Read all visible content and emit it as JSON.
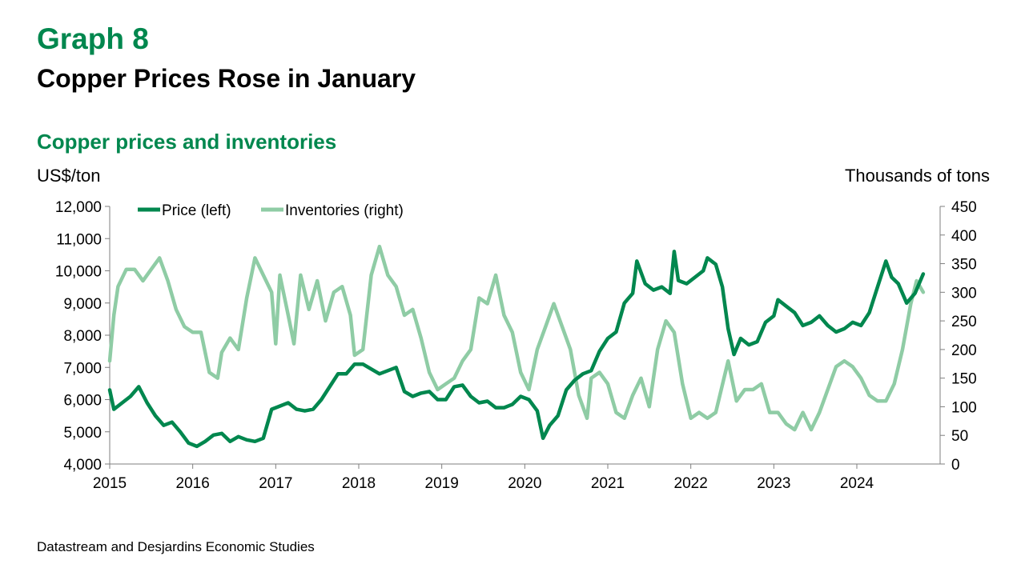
{
  "header": {
    "graph_number": "Graph 8",
    "title": "Copper Prices Rose in January",
    "subtitle": "Copper prices and inventories"
  },
  "footer": {
    "source": "Datastream and Desjardins Economic Studies"
  },
  "colors": {
    "accent": "#00874E",
    "price_line": "#00874E",
    "inventories_line": "#8FCCA5"
  },
  "chart_data": {
    "type": "line",
    "y_left_label": "US$/ton",
    "y_right_label": "Thousands of tons",
    "y_left_range": [
      4000,
      12000
    ],
    "y_left_ticks": [
      "4,000",
      "5,000",
      "6,000",
      "7,000",
      "8,000",
      "9,000",
      "10,000",
      "11,000",
      "12,000"
    ],
    "y_right_range": [
      0,
      450
    ],
    "y_right_ticks": [
      "0",
      "50",
      "100",
      "150",
      "200",
      "250",
      "300",
      "350",
      "400",
      "450"
    ],
    "x_range": [
      2015,
      2024.8
    ],
    "x_ticks": [
      "2015",
      "2016",
      "2017",
      "2018",
      "2019",
      "2020",
      "2021",
      "2022",
      "2023",
      "2024"
    ],
    "grid": false,
    "legend_position": "top-left",
    "series": [
      {
        "name": "Price (left)",
        "axis": "left",
        "points": [
          [
            2015.0,
            6300
          ],
          [
            2015.05,
            5700
          ],
          [
            2015.15,
            5900
          ],
          [
            2015.25,
            6100
          ],
          [
            2015.35,
            6400
          ],
          [
            2015.45,
            5900
          ],
          [
            2015.55,
            5500
          ],
          [
            2015.65,
            5200
          ],
          [
            2015.75,
            5300
          ],
          [
            2015.85,
            5000
          ],
          [
            2015.95,
            4650
          ],
          [
            2016.05,
            4550
          ],
          [
            2016.15,
            4700
          ],
          [
            2016.25,
            4900
          ],
          [
            2016.35,
            4950
          ],
          [
            2016.45,
            4700
          ],
          [
            2016.55,
            4850
          ],
          [
            2016.65,
            4750
          ],
          [
            2016.75,
            4700
          ],
          [
            2016.85,
            4800
          ],
          [
            2016.95,
            5700
          ],
          [
            2017.05,
            5800
          ],
          [
            2017.15,
            5900
          ],
          [
            2017.25,
            5700
          ],
          [
            2017.35,
            5650
          ],
          [
            2017.45,
            5700
          ],
          [
            2017.55,
            6000
          ],
          [
            2017.65,
            6400
          ],
          [
            2017.75,
            6800
          ],
          [
            2017.85,
            6800
          ],
          [
            2017.95,
            7100
          ],
          [
            2018.05,
            7100
          ],
          [
            2018.15,
            6950
          ],
          [
            2018.25,
            6800
          ],
          [
            2018.35,
            6900
          ],
          [
            2018.45,
            7000
          ],
          [
            2018.55,
            6250
          ],
          [
            2018.65,
            6100
          ],
          [
            2018.75,
            6200
          ],
          [
            2018.85,
            6250
          ],
          [
            2018.95,
            6000
          ],
          [
            2019.05,
            6000
          ],
          [
            2019.15,
            6400
          ],
          [
            2019.25,
            6450
          ],
          [
            2019.35,
            6100
          ],
          [
            2019.45,
            5900
          ],
          [
            2019.55,
            5950
          ],
          [
            2019.65,
            5750
          ],
          [
            2019.75,
            5750
          ],
          [
            2019.85,
            5850
          ],
          [
            2019.95,
            6100
          ],
          [
            2020.05,
            6000
          ],
          [
            2020.15,
            5650
          ],
          [
            2020.22,
            4800
          ],
          [
            2020.3,
            5200
          ],
          [
            2020.4,
            5500
          ],
          [
            2020.5,
            6300
          ],
          [
            2020.6,
            6600
          ],
          [
            2020.7,
            6800
          ],
          [
            2020.8,
            6900
          ],
          [
            2020.9,
            7500
          ],
          [
            2021.0,
            7900
          ],
          [
            2021.1,
            8100
          ],
          [
            2021.2,
            9000
          ],
          [
            2021.3,
            9300
          ],
          [
            2021.35,
            10300
          ],
          [
            2021.45,
            9600
          ],
          [
            2021.55,
            9400
          ],
          [
            2021.65,
            9500
          ],
          [
            2021.75,
            9300
          ],
          [
            2021.8,
            10600
          ],
          [
            2021.85,
            9700
          ],
          [
            2021.95,
            9600
          ],
          [
            2022.05,
            9800
          ],
          [
            2022.15,
            10000
          ],
          [
            2022.2,
            10400
          ],
          [
            2022.3,
            10200
          ],
          [
            2022.38,
            9500
          ],
          [
            2022.45,
            8200
          ],
          [
            2022.52,
            7400
          ],
          [
            2022.6,
            7900
          ],
          [
            2022.7,
            7700
          ],
          [
            2022.8,
            7800
          ],
          [
            2022.9,
            8400
          ],
          [
            2023.0,
            8600
          ],
          [
            2023.05,
            9100
          ],
          [
            2023.15,
            8900
          ],
          [
            2023.25,
            8700
          ],
          [
            2023.35,
            8300
          ],
          [
            2023.45,
            8400
          ],
          [
            2023.55,
            8600
          ],
          [
            2023.65,
            8300
          ],
          [
            2023.75,
            8100
          ],
          [
            2023.85,
            8200
          ],
          [
            2023.95,
            8400
          ],
          [
            2024.05,
            8300
          ],
          [
            2024.15,
            8700
          ],
          [
            2024.25,
            9500
          ],
          [
            2024.35,
            10300
          ],
          [
            2024.42,
            9800
          ],
          [
            2024.5,
            9600
          ],
          [
            2024.6,
            9000
          ],
          [
            2024.7,
            9300
          ],
          [
            2024.8,
            9900
          ]
        ]
      },
      {
        "name": "Inventories (right)",
        "axis": "right",
        "points": [
          [
            2015.0,
            180
          ],
          [
            2015.05,
            260
          ],
          [
            2015.1,
            310
          ],
          [
            2015.2,
            340
          ],
          [
            2015.3,
            340
          ],
          [
            2015.4,
            320
          ],
          [
            2015.5,
            340
          ],
          [
            2015.6,
            360
          ],
          [
            2015.7,
            320
          ],
          [
            2015.8,
            270
          ],
          [
            2015.9,
            240
          ],
          [
            2016.0,
            230
          ],
          [
            2016.1,
            230
          ],
          [
            2016.2,
            160
          ],
          [
            2016.3,
            150
          ],
          [
            2016.35,
            195
          ],
          [
            2016.45,
            220
          ],
          [
            2016.55,
            200
          ],
          [
            2016.65,
            290
          ],
          [
            2016.75,
            360
          ],
          [
            2016.85,
            330
          ],
          [
            2016.95,
            300
          ],
          [
            2017.0,
            210
          ],
          [
            2017.05,
            330
          ],
          [
            2017.15,
            260
          ],
          [
            2017.22,
            210
          ],
          [
            2017.3,
            330
          ],
          [
            2017.4,
            270
          ],
          [
            2017.5,
            320
          ],
          [
            2017.6,
            250
          ],
          [
            2017.7,
            300
          ],
          [
            2017.8,
            310
          ],
          [
            2017.9,
            260
          ],
          [
            2017.95,
            190
          ],
          [
            2018.05,
            200
          ],
          [
            2018.15,
            330
          ],
          [
            2018.25,
            380
          ],
          [
            2018.35,
            330
          ],
          [
            2018.45,
            310
          ],
          [
            2018.55,
            260
          ],
          [
            2018.65,
            270
          ],
          [
            2018.75,
            220
          ],
          [
            2018.85,
            160
          ],
          [
            2018.95,
            130
          ],
          [
            2019.05,
            140
          ],
          [
            2019.15,
            150
          ],
          [
            2019.25,
            180
          ],
          [
            2019.35,
            200
          ],
          [
            2019.45,
            290
          ],
          [
            2019.55,
            280
          ],
          [
            2019.65,
            330
          ],
          [
            2019.75,
            260
          ],
          [
            2019.85,
            230
          ],
          [
            2019.95,
            160
          ],
          [
            2020.05,
            130
          ],
          [
            2020.15,
            200
          ],
          [
            2020.25,
            240
          ],
          [
            2020.35,
            280
          ],
          [
            2020.45,
            240
          ],
          [
            2020.55,
            200
          ],
          [
            2020.65,
            120
          ],
          [
            2020.75,
            80
          ],
          [
            2020.8,
            150
          ],
          [
            2020.9,
            160
          ],
          [
            2021.0,
            140
          ],
          [
            2021.1,
            90
          ],
          [
            2021.2,
            80
          ],
          [
            2021.3,
            120
          ],
          [
            2021.4,
            150
          ],
          [
            2021.5,
            100
          ],
          [
            2021.6,
            200
          ],
          [
            2021.7,
            250
          ],
          [
            2021.8,
            230
          ],
          [
            2021.9,
            140
          ],
          [
            2022.0,
            80
          ],
          [
            2022.1,
            90
          ],
          [
            2022.2,
            80
          ],
          [
            2022.3,
            90
          ],
          [
            2022.4,
            150
          ],
          [
            2022.45,
            180
          ],
          [
            2022.55,
            110
          ],
          [
            2022.65,
            130
          ],
          [
            2022.75,
            130
          ],
          [
            2022.85,
            140
          ],
          [
            2022.95,
            90
          ],
          [
            2023.05,
            90
          ],
          [
            2023.15,
            70
          ],
          [
            2023.25,
            60
          ],
          [
            2023.35,
            90
          ],
          [
            2023.45,
            60
          ],
          [
            2023.55,
            90
          ],
          [
            2023.65,
            130
          ],
          [
            2023.75,
            170
          ],
          [
            2023.85,
            180
          ],
          [
            2023.95,
            170
          ],
          [
            2024.05,
            150
          ],
          [
            2024.15,
            120
          ],
          [
            2024.25,
            110
          ],
          [
            2024.35,
            110
          ],
          [
            2024.45,
            140
          ],
          [
            2024.55,
            200
          ],
          [
            2024.65,
            280
          ],
          [
            2024.72,
            320
          ],
          [
            2024.8,
            300
          ]
        ]
      }
    ]
  }
}
